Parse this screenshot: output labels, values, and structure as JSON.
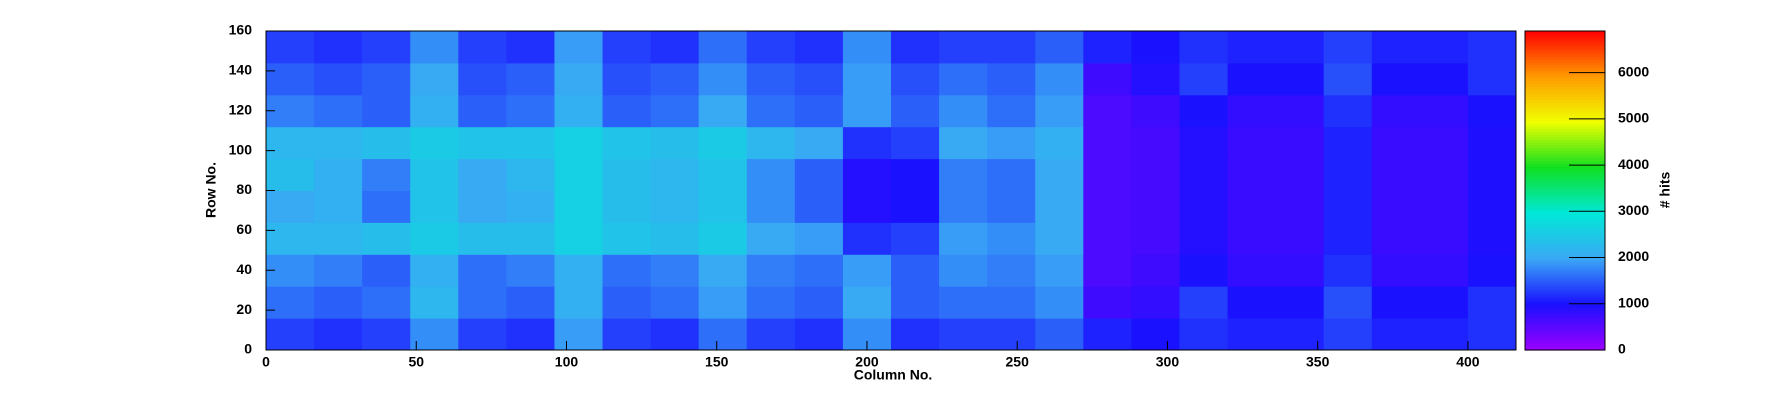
{
  "chart_data": {
    "type": "heatmap",
    "xlabel": "Column No.",
    "ylabel": "Row No.",
    "zlabel": "# hits",
    "xbins": [
      0,
      16,
      32,
      48,
      64,
      80,
      96,
      112,
      128,
      144,
      160,
      176,
      192,
      208,
      224,
      240,
      256,
      272,
      288,
      304,
      320,
      336,
      352,
      368,
      384,
      400,
      416
    ],
    "ybins": [
      0,
      16,
      32,
      48,
      64,
      80,
      96,
      112,
      128,
      144,
      160
    ],
    "values": [
      [
        1300,
        1200,
        1300,
        1800,
        1300,
        1200,
        1900,
        1300,
        1200,
        1600,
        1300,
        1200,
        1800,
        1200,
        1300,
        1300,
        1500,
        1100,
        1000,
        1200,
        1100,
        1100,
        1300,
        1100,
        1100,
        1200
      ],
      [
        1600,
        1500,
        1600,
        2200,
        1600,
        1500,
        2100,
        1500,
        1600,
        1900,
        1600,
        1500,
        2000,
        1500,
        1600,
        1600,
        1800,
        700,
        800,
        1300,
        1000,
        1000,
        1400,
        1000,
        1000,
        1200
      ],
      [
        1800,
        1700,
        1500,
        2100,
        1600,
        1700,
        2100,
        1600,
        1700,
        2000,
        1700,
        1600,
        1900,
        1500,
        1800,
        1700,
        1900,
        600,
        700,
        1000,
        800,
        800,
        1200,
        800,
        800,
        1000
      ],
      [
        2200,
        2200,
        2300,
        2500,
        2300,
        2300,
        2600,
        2400,
        2300,
        2500,
        2000,
        1900,
        1200,
        1300,
        1900,
        1800,
        2000,
        600,
        650,
        900,
        750,
        750,
        1100,
        750,
        750,
        950
      ],
      [
        2000,
        2100,
        1600,
        2400,
        2000,
        2100,
        2600,
        2300,
        2200,
        2400,
        1800,
        1500,
        900,
        1000,
        1700,
        1600,
        2000,
        600,
        650,
        900,
        750,
        750,
        1100,
        750,
        750,
        950
      ],
      [
        2300,
        2100,
        1700,
        2400,
        2000,
        2200,
        2600,
        2300,
        2200,
        2400,
        1800,
        1500,
        900,
        1000,
        1700,
        1600,
        2000,
        600,
        650,
        900,
        750,
        750,
        1100,
        750,
        750,
        950
      ],
      [
        2200,
        2200,
        2300,
        2500,
        2400,
        2400,
        2600,
        2400,
        2300,
        2500,
        2200,
        2000,
        1200,
        1300,
        2000,
        1900,
        2100,
        600,
        650,
        900,
        750,
        750,
        1100,
        750,
        750,
        950
      ],
      [
        1700,
        1600,
        1500,
        2100,
        1500,
        1600,
        2100,
        1500,
        1600,
        2000,
        1600,
        1500,
        1900,
        1500,
        1800,
        1600,
        1900,
        600,
        700,
        1000,
        800,
        800,
        1200,
        800,
        800,
        1000
      ],
      [
        1500,
        1400,
        1500,
        2000,
        1400,
        1500,
        2000,
        1400,
        1500,
        1800,
        1500,
        1400,
        1900,
        1400,
        1600,
        1500,
        1800,
        700,
        900,
        1300,
        1000,
        1000,
        1400,
        1000,
        1000,
        1200
      ],
      [
        1300,
        1200,
        1300,
        1800,
        1300,
        1200,
        1900,
        1300,
        1200,
        1600,
        1300,
        1200,
        1800,
        1200,
        1300,
        1300,
        1500,
        1100,
        1000,
        1200,
        1100,
        1100,
        1300,
        1100,
        1100,
        1200
      ]
    ],
    "xlim": [
      0,
      416
    ],
    "xticks": [
      0,
      50,
      100,
      150,
      200,
      250,
      300,
      350,
      400
    ],
    "ylim": [
      0,
      160
    ],
    "yticks": [
      0,
      20,
      40,
      60,
      80,
      100,
      120,
      140,
      160
    ],
    "zlim": [
      0,
      6900
    ],
    "zticks": [
      0,
      1000,
      2000,
      3000,
      4000,
      5000,
      6000
    ],
    "colormap": [
      "#9a00ff",
      "#1a10ff",
      "#3aa8f5",
      "#00e8d8",
      "#10e020",
      "#f0ff00",
      "#ff9a00",
      "#ff0000"
    ]
  }
}
